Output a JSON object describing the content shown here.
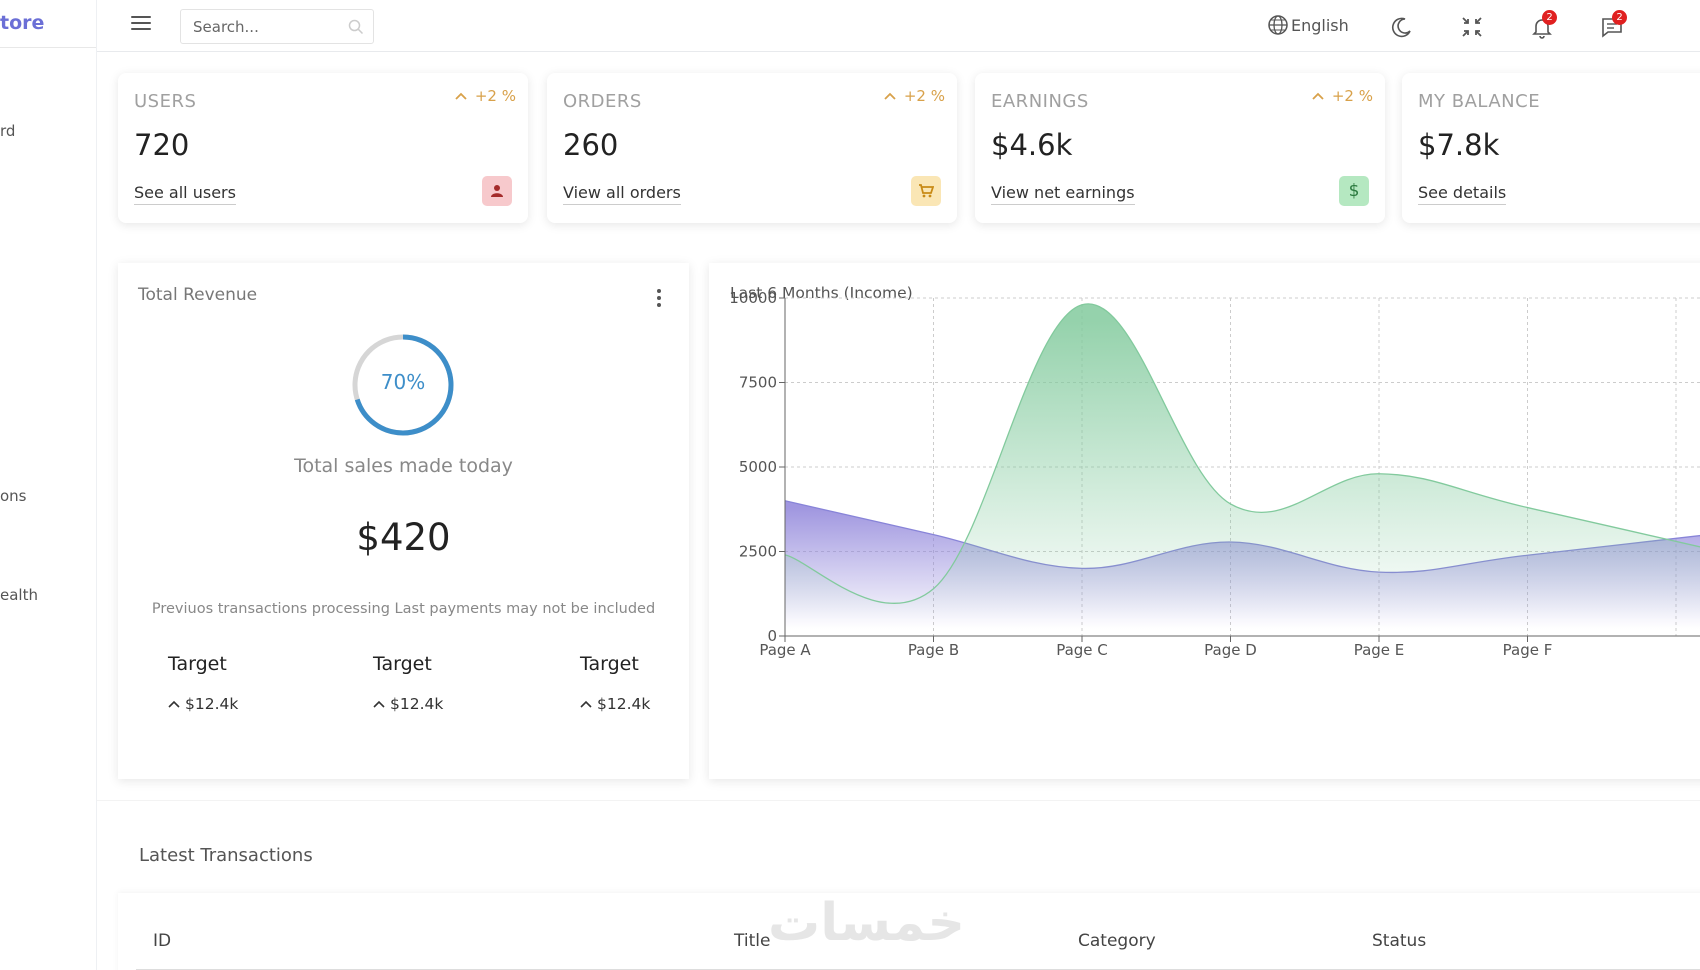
{
  "colors": {
    "accent": "#6b6fd6",
    "green_area": "#8fd3a6",
    "purple_area": "#8f84da",
    "progress": "#3d8ec9",
    "pct": "#d8a14a",
    "badge": "#e02020"
  },
  "sidebar": {
    "logo": "tore",
    "items": [
      {
        "label": "rd"
      },
      {
        "label": "ons"
      },
      {
        "label": "ealth"
      }
    ]
  },
  "topbar": {
    "search_placeholder": "Search...",
    "language": "English",
    "notifications_count": "2",
    "messages_count": "2"
  },
  "widgets": [
    {
      "title": "USERS",
      "value": "720",
      "link": "See all users",
      "pct": "+2 %",
      "icon": "person-icon",
      "icon_bg": "#f7c9cc",
      "icon_color": "#a42b2b"
    },
    {
      "title": "ORDERS",
      "value": "260",
      "link": "View all orders",
      "pct": "+2 %",
      "icon": "cart-icon",
      "icon_bg": "#fae6b5",
      "icon_color": "#c88a16"
    },
    {
      "title": "EARNINGS",
      "value": "$4.6k",
      "link": "View net earnings",
      "pct": "+2 %",
      "icon": "dollar-icon",
      "icon_bg": "#b5e8c1",
      "icon_color": "#2b7a3f"
    },
    {
      "title": "MY BALANCE",
      "value": "$7.8k",
      "link": "See details",
      "pct": "",
      "icon": "",
      "icon_bg": "",
      "icon_color": ""
    }
  ],
  "revenue": {
    "title": "Total Revenue",
    "progress": "70%",
    "progress_value": 0.7,
    "subtitle": "Total sales made today",
    "amount": "$420",
    "note": "Previuos transactions processing Last payments may not be included",
    "targets": [
      {
        "label": "Target",
        "value": "$12.4k"
      },
      {
        "label": "Target",
        "value": "$12.4k"
      },
      {
        "label": "Target",
        "value": "$12.4k"
      }
    ]
  },
  "chart_data": {
    "type": "area",
    "title": "Last 6 Months (Income)",
    "categories": [
      "Page A",
      "Page B",
      "Page C",
      "Page D",
      "Page E",
      "Page F"
    ],
    "ylim": [
      0,
      10000
    ],
    "yticks": [
      0,
      2500,
      5000,
      7500,
      10000
    ],
    "grid": true,
    "series": [
      {
        "values": [
          4000,
          3000,
          2000,
          2780,
          1890,
          2390
        ],
        "color": "#8f84da"
      },
      {
        "values": [
          2400,
          1398,
          9800,
          3908,
          4800,
          3800
        ],
        "color": "#8fd3a6"
      }
    ]
  },
  "transactions": {
    "title": "Latest Transactions",
    "columns": [
      "ID",
      "Title",
      "Category",
      "Status"
    ],
    "watermark": "خمسات"
  }
}
